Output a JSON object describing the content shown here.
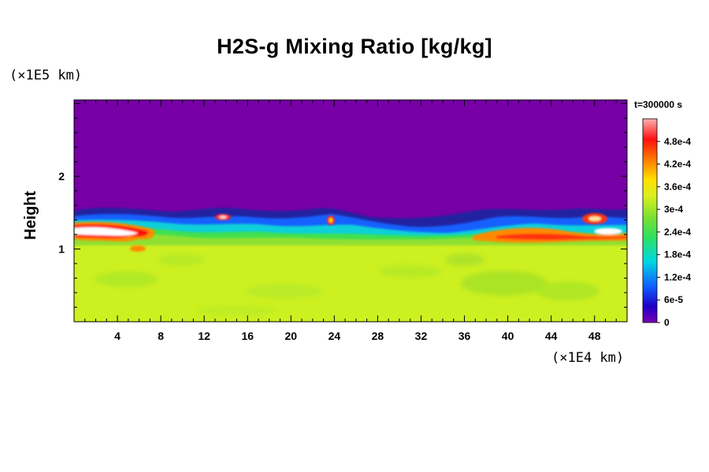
{
  "chart_data": {
    "type": "heatmap",
    "title": "H2S-g Mixing Ratio [kg/kg]",
    "ylabel": "Height",
    "y_unit": "(×1E5 km)",
    "x_unit": "(×1E4 km)",
    "time_label": "t=300000 s",
    "x_ticks": [
      "4",
      "8",
      "12",
      "16",
      "20",
      "24",
      "28",
      "32",
      "36",
      "40",
      "44",
      "48"
    ],
    "y_ticks": [
      "1",
      "2"
    ],
    "xlim": [
      0,
      51
    ],
    "ylim": [
      0,
      3.05
    ],
    "colorbar_labels": [
      "0",
      "6e-5",
      "1.2e-4",
      "1.8e-4",
      "2.4e-4",
      "3e-4",
      "3.6e-4",
      "4.2e-4",
      "4.8e-4"
    ],
    "colorbar_range": [
      0,
      0.00054
    ],
    "background_region": {
      "y_above": 1.45,
      "value": 0
    },
    "lower_region": {
      "y_below": 1.1,
      "value": 0.00034
    },
    "features": [
      {
        "x": 4,
        "y": 1.2,
        "value": 0.00054
      },
      {
        "x": 7,
        "y": 1.05,
        "value": 0.00045
      },
      {
        "x": 13.5,
        "y": 1.4,
        "value": 0.00048
      },
      {
        "x": 23.5,
        "y": 1.37,
        "value": 0.00045
      },
      {
        "x": 42,
        "y": 1.17,
        "value": 0.00045
      },
      {
        "x": 48.5,
        "y": 1.35,
        "value": 0.00052
      }
    ]
  }
}
